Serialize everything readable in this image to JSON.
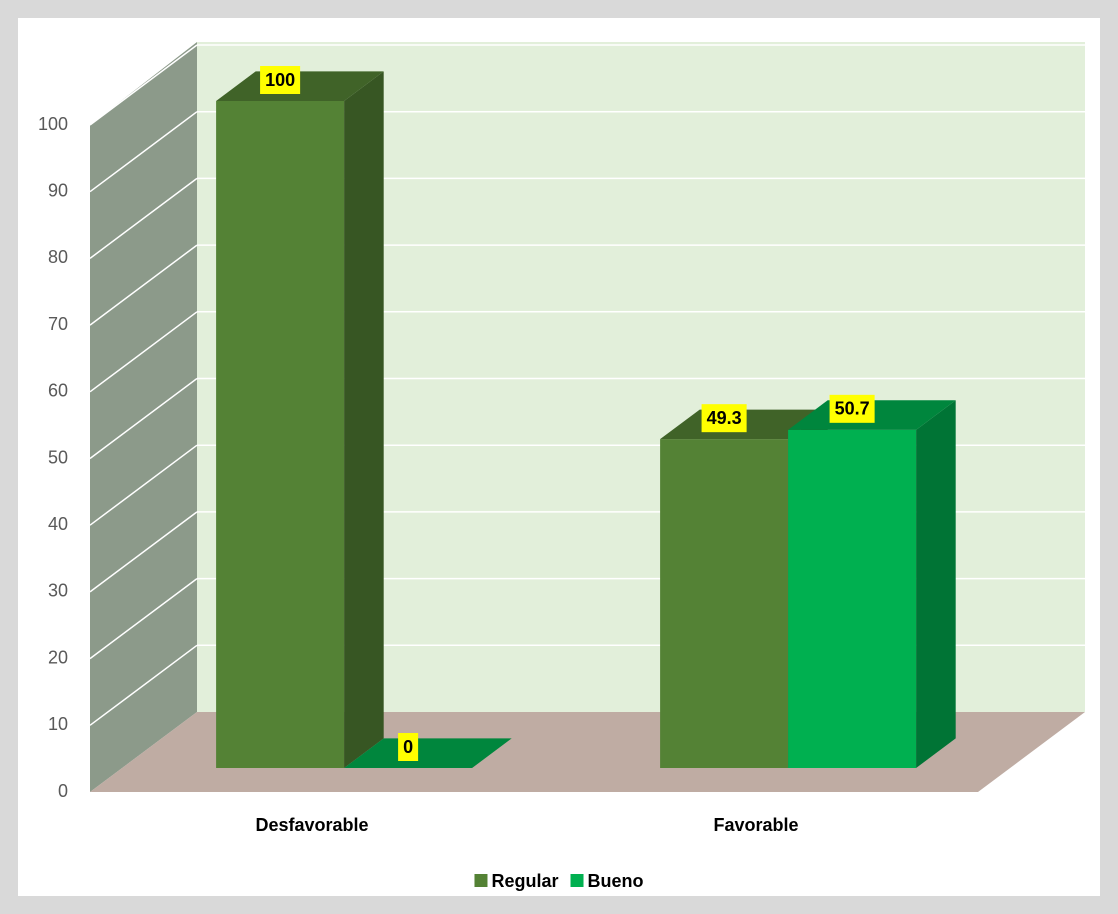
{
  "chart_data": {
    "type": "bar3d",
    "categories": [
      "Desfavorable",
      "Favorable"
    ],
    "series": [
      {
        "name": "Regular",
        "color": "#548235",
        "values": [
          100,
          49.3
        ]
      },
      {
        "name": "Bueno",
        "color": "#00b050",
        "values": [
          0,
          50.7
        ]
      }
    ],
    "ylim": [
      0,
      100
    ],
    "yticks": [
      0,
      10,
      20,
      30,
      40,
      50,
      60,
      70,
      80,
      90,
      100
    ],
    "grid": true,
    "legend": "bottom"
  }
}
